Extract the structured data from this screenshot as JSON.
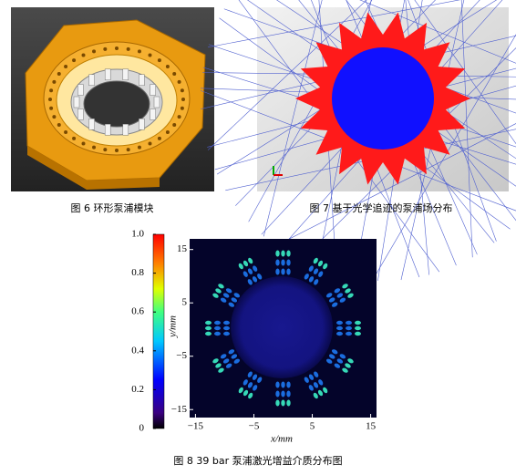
{
  "figures": [
    {
      "caption": "图 6   环形泵浦模块"
    },
    {
      "caption": "图 7   基于光学追迹的泵浦场分布"
    },
    {
      "caption": "图 8   39 bar 泵浦激光增益介质分布图",
      "colorbar": {
        "ylim": [
          0,
          1
        ],
        "yticks": [
          0,
          0.2,
          0.4,
          0.6,
          0.8,
          {
            "value": 1,
            "label": "1.0"
          }
        ]
      },
      "x_label": "x/mm",
      "y_label": "y/mm",
      "xlim": [
        -16,
        16
      ],
      "ylim": [
        -16.5,
        17
      ],
      "xticks": [
        {
          "value": -15,
          "label": "−15"
        },
        {
          "value": -5,
          "label": "−5"
        },
        5,
        15
      ],
      "yticks": [
        {
          "value": -15,
          "label": "−15"
        },
        {
          "value": -5,
          "label": "−5"
        },
        5,
        15
      ]
    }
  ]
}
